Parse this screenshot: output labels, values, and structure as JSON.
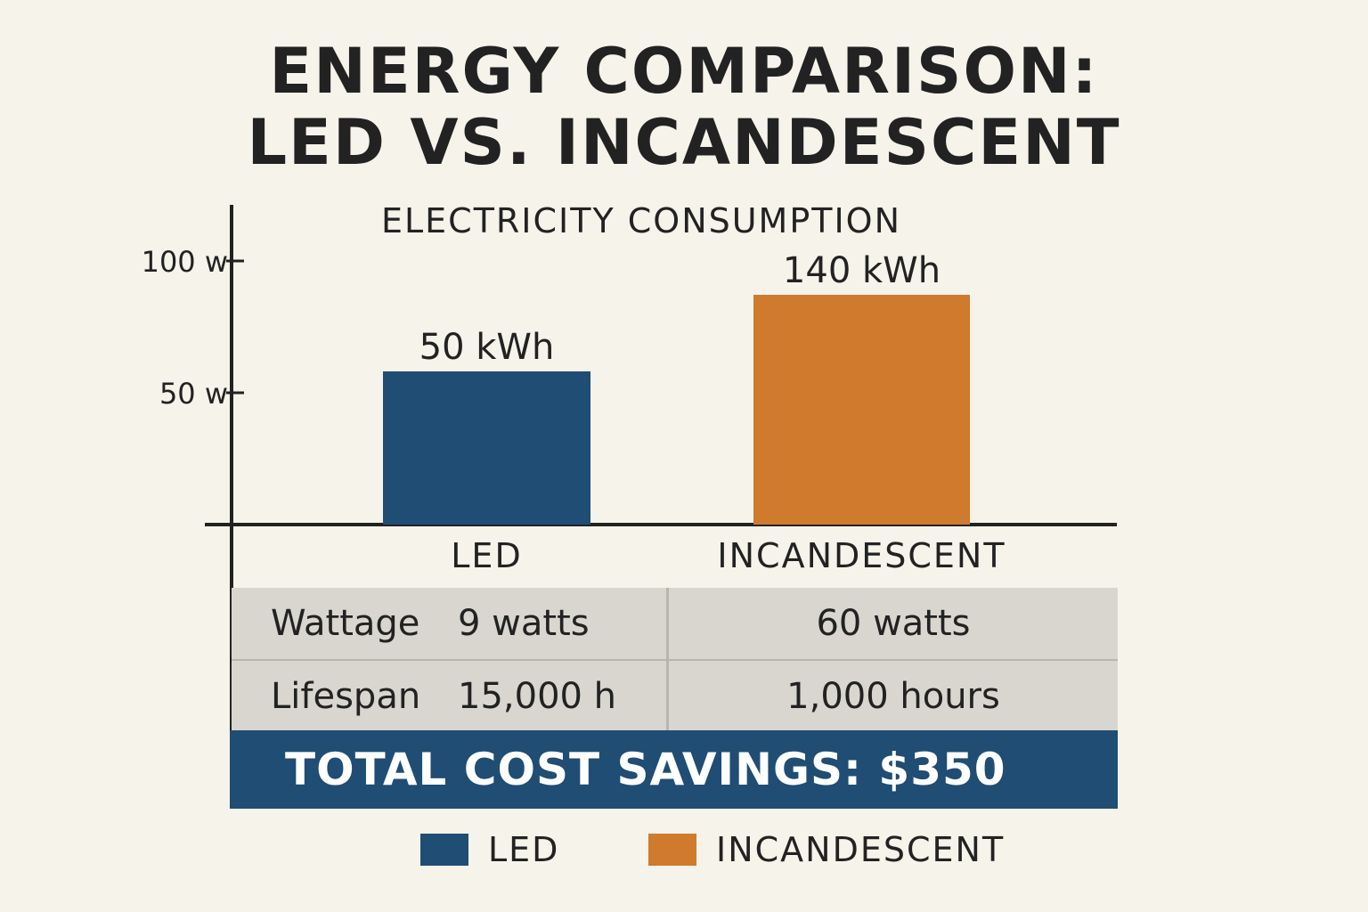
{
  "title_line1": "ENERGY COMPARISON:",
  "title_line2": "LED VS. INCANDESCENT",
  "chart_data": {
    "type": "bar",
    "title": "ELECTRICITY CONSUMPTION",
    "categories": [
      "LED",
      "INCANDESCENT"
    ],
    "values": [
      50,
      140
    ],
    "value_labels": [
      "50 kWh",
      "140 kWh"
    ],
    "colors": [
      "#1f4d73",
      "#d07a2e"
    ],
    "yticks": [
      {
        "value": 50,
        "label": "50 w"
      },
      {
        "value": 100,
        "label": "100 w"
      }
    ],
    "grid": false,
    "legend_position": "bottom"
  },
  "table": {
    "rows": [
      {
        "label": "Wattage",
        "led": "9 watts",
        "incandescent": "60 watts"
      },
      {
        "label": "Lifespan",
        "led": "15,000 h",
        "incandescent": "1,000 hours"
      }
    ]
  },
  "savings_text": "TOTAL COST SAVINGS: $350",
  "legend": [
    {
      "label": "LED",
      "color": "#1f4d73"
    },
    {
      "label": "INCANDESCENT",
      "color": "#d07a2e"
    }
  ]
}
